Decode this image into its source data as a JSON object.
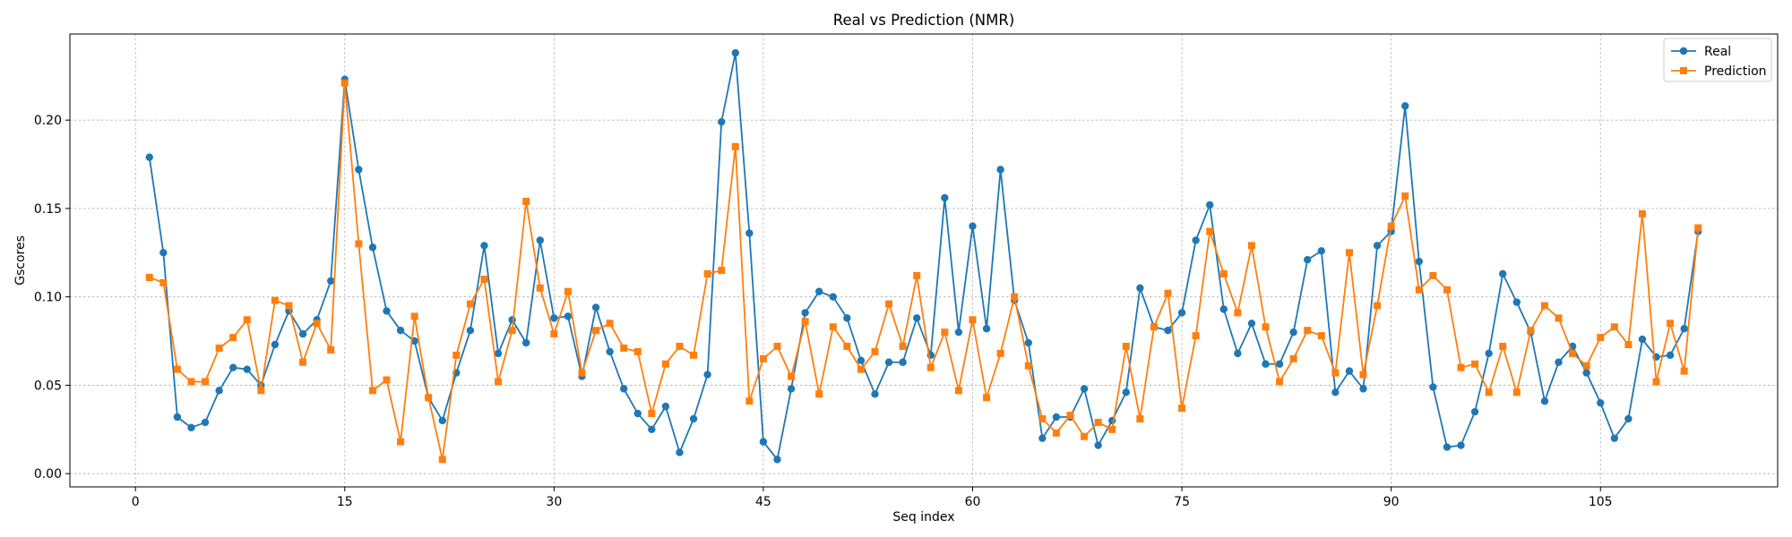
{
  "chart_data": {
    "type": "line",
    "title": "Real vs Prediction (NMR)",
    "xlabel": "Seq index",
    "ylabel": "Gscores",
    "xlim": [
      -4.7,
      117.7
    ],
    "ylim": [
      -0.0075,
      0.2487
    ],
    "xticks": [
      0,
      15,
      30,
      45,
      60,
      75,
      90,
      105
    ],
    "yticks": [
      0.0,
      0.05,
      0.1,
      0.15,
      0.2
    ],
    "ytick_labels": [
      "0.00",
      "0.05",
      "0.10",
      "0.15",
      "0.20"
    ],
    "grid": true,
    "legend_position": "upper right",
    "x": [
      1,
      2,
      3,
      4,
      5,
      6,
      7,
      8,
      9,
      10,
      11,
      12,
      13,
      14,
      15,
      16,
      17,
      18,
      19,
      20,
      21,
      22,
      23,
      24,
      25,
      26,
      27,
      28,
      29,
      30,
      31,
      32,
      33,
      34,
      35,
      36,
      37,
      38,
      39,
      40,
      41,
      42,
      43,
      44,
      45,
      46,
      47,
      48,
      49,
      50,
      51,
      52,
      53,
      54,
      55,
      56,
      57,
      58,
      59,
      60,
      61,
      62,
      63,
      64,
      65,
      66,
      67,
      68,
      69,
      70,
      71,
      72,
      73,
      74,
      75,
      76,
      77,
      78,
      79,
      80,
      81,
      82,
      83,
      84,
      85,
      86,
      87,
      88,
      89,
      90,
      91,
      92,
      93,
      94,
      95,
      96,
      97,
      98,
      99,
      100,
      101,
      102,
      103,
      104,
      105,
      106,
      107,
      108,
      109,
      110,
      111,
      112
    ],
    "series": [
      {
        "name": "Real",
        "color": "#1f77b4",
        "marker": "circle",
        "values": [
          0.179,
          0.125,
          0.032,
          0.026,
          0.029,
          0.047,
          0.06,
          0.059,
          0.05,
          0.073,
          0.092,
          0.079,
          0.087,
          0.109,
          0.223,
          0.172,
          0.128,
          0.092,
          0.081,
          0.075,
          0.043,
          0.03,
          0.057,
          0.081,
          0.129,
          0.068,
          0.087,
          0.074,
          0.132,
          0.088,
          0.089,
          0.055,
          0.094,
          0.069,
          0.048,
          0.034,
          0.025,
          0.038,
          0.012,
          0.031,
          0.056,
          0.199,
          0.238,
          0.136,
          0.018,
          0.008,
          0.048,
          0.091,
          0.103,
          0.1,
          0.088,
          0.064,
          0.045,
          0.063,
          0.063,
          0.088,
          0.067,
          0.156,
          0.08,
          0.14,
          0.082,
          0.172,
          0.098,
          0.074,
          0.02,
          0.032,
          0.032,
          0.048,
          0.016,
          0.03,
          0.046,
          0.105,
          0.083,
          0.081,
          0.091,
          0.132,
          0.152,
          0.093,
          0.068,
          0.085,
          0.062,
          0.062,
          0.08,
          0.121,
          0.126,
          0.046,
          0.058,
          0.048,
          0.129,
          0.137,
          0.208,
          0.12,
          0.049,
          0.015,
          0.016,
          0.035,
          0.068,
          0.113,
          0.097,
          0.08,
          0.041,
          0.063,
          0.072,
          0.057,
          0.04,
          0.02,
          0.031,
          0.076,
          0.066,
          0.067,
          0.082,
          0.137
        ]
      },
      {
        "name": "Prediction",
        "color": "#ff7f0e",
        "marker": "square",
        "values": [
          0.111,
          0.108,
          0.059,
          0.052,
          0.052,
          0.071,
          0.077,
          0.087,
          0.047,
          0.098,
          0.095,
          0.063,
          0.085,
          0.07,
          0.221,
          0.13,
          0.047,
          0.053,
          0.018,
          0.089,
          0.043,
          0.008,
          0.067,
          0.096,
          0.11,
          0.052,
          0.081,
          0.154,
          0.105,
          0.079,
          0.103,
          0.057,
          0.081,
          0.085,
          0.071,
          0.069,
          0.034,
          0.062,
          0.072,
          0.067,
          0.113,
          0.115,
          0.185,
          0.041,
          0.065,
          0.072,
          0.055,
          0.086,
          0.045,
          0.083,
          0.072,
          0.059,
          0.069,
          0.096,
          0.072,
          0.112,
          0.06,
          0.08,
          0.047,
          0.087,
          0.043,
          0.068,
          0.1,
          0.061,
          0.031,
          0.023,
          0.033,
          0.021,
          0.029,
          0.025,
          0.072,
          0.031,
          0.083,
          0.102,
          0.037,
          0.078,
          0.137,
          0.113,
          0.091,
          0.129,
          0.083,
          0.052,
          0.065,
          0.081,
          0.078,
          0.057,
          0.125,
          0.056,
          0.095,
          0.14,
          0.157,
          0.104,
          0.112,
          0.104,
          0.06,
          0.062,
          0.046,
          0.072,
          0.046,
          0.081,
          0.095,
          0.088,
          0.068,
          0.061,
          0.077,
          0.083,
          0.073,
          0.147,
          0.052,
          0.085,
          0.058,
          0.139
        ]
      }
    ]
  }
}
